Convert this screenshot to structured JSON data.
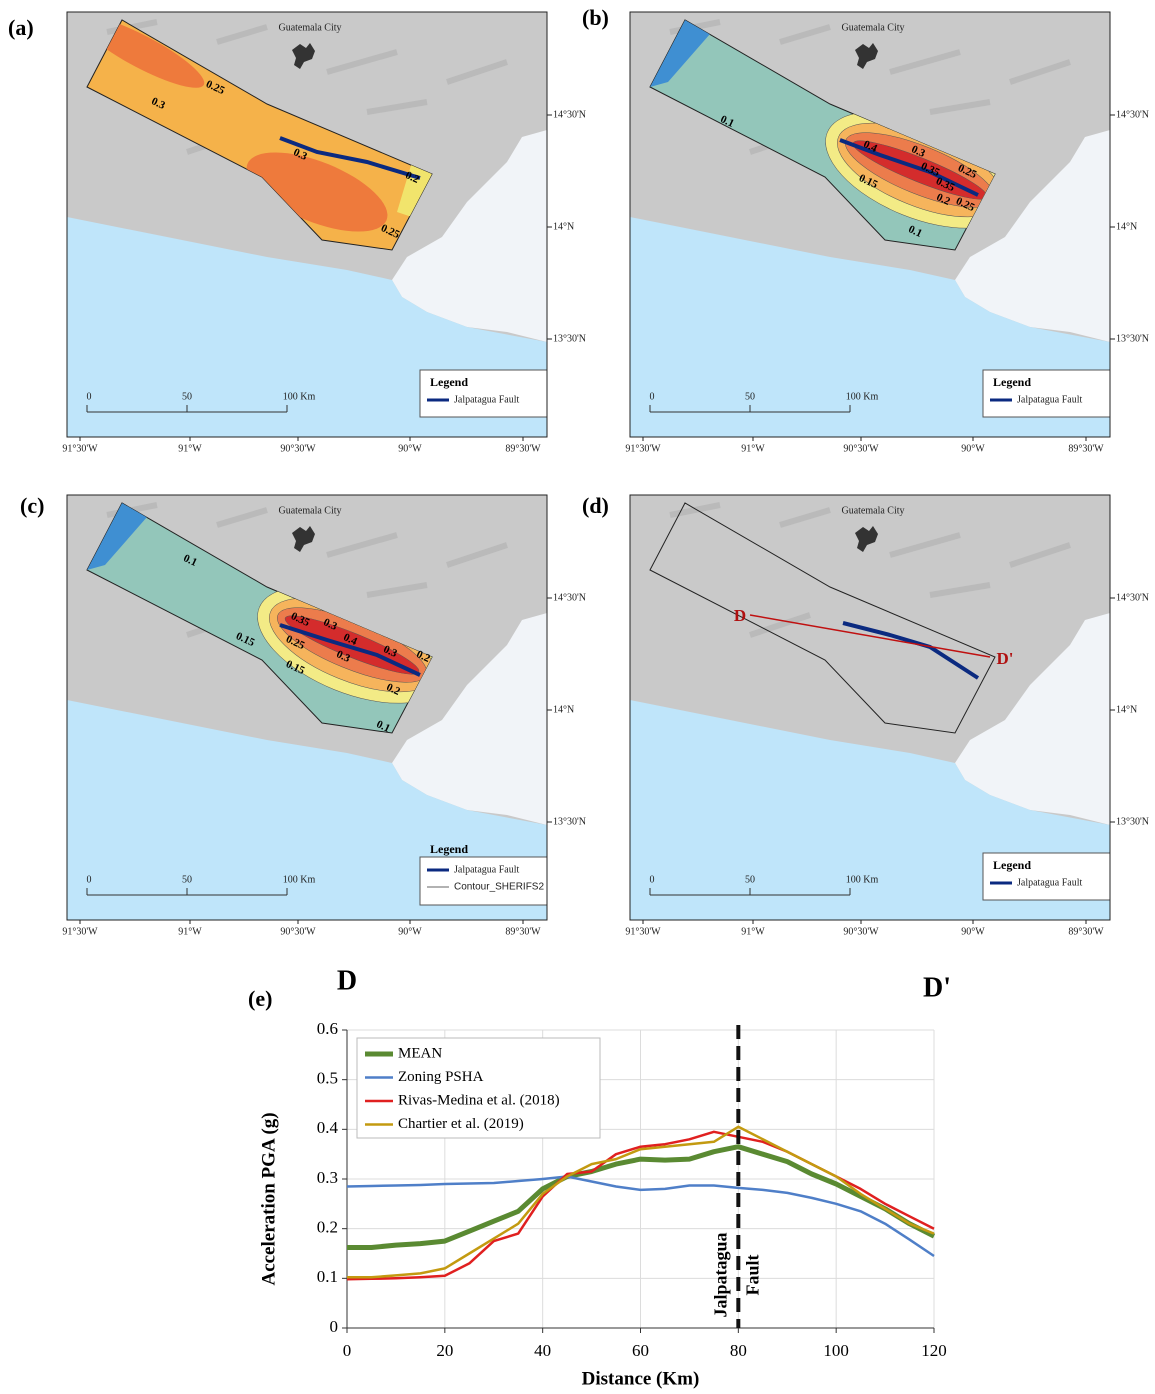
{
  "map_common": {
    "city": "Guatemala City",
    "lat_labels": [
      "14°30'N",
      "14°N",
      "13°30'N"
    ],
    "lon_labels": [
      "91°30'W",
      "91°W",
      "90°30'W",
      "90°W",
      "89°30'W"
    ],
    "scale_labels": [
      "0",
      "50",
      "100 Km"
    ],
    "legend_title": "Legend",
    "legend_fault": "Jalpatagua Fault"
  },
  "maps": [
    {
      "label": "(a)",
      "contours": [
        "0.25",
        "0.3",
        "0.3",
        "0.2",
        "0.25"
      ]
    },
    {
      "label": "(b)",
      "contours": [
        "0.1",
        "0.4",
        "0.3",
        "0.25",
        "0.35",
        "0.35",
        "0.15",
        "0.2",
        "0.25",
        "0.1"
      ]
    },
    {
      "label": "(c)",
      "contours": [
        "0.1",
        "0.35",
        "0.3",
        "0.4",
        "0.3",
        "0.2",
        "0.25",
        "0.3",
        "0.15",
        "0.15",
        "0.2",
        "0.1"
      ],
      "legend_extra": "Contour_SHERIFS2"
    },
    {
      "label": "(d)",
      "contours": [],
      "markers": [
        "D",
        "D'"
      ]
    }
  ],
  "chart_data": {
    "type": "line",
    "label": "(e)",
    "start_label": "D",
    "end_label": "D'",
    "x_label": "Distance (Km)",
    "y_label": "Acceleration PGA (g)",
    "x": [
      0,
      5,
      10,
      15,
      20,
      25,
      30,
      35,
      40,
      45,
      50,
      55,
      60,
      65,
      70,
      75,
      80,
      85,
      90,
      95,
      100,
      105,
      110,
      115,
      120
    ],
    "series": [
      {
        "name": "MEAN",
        "color": "#5a8a32",
        "values": [
          0.162,
          0.162,
          0.167,
          0.17,
          0.175,
          0.195,
          0.215,
          0.235,
          0.28,
          0.305,
          0.315,
          0.33,
          0.34,
          0.338,
          0.34,
          0.355,
          0.365,
          0.35,
          0.335,
          0.31,
          0.29,
          0.265,
          0.24,
          0.21,
          0.185
        ]
      },
      {
        "name": "Zoning PSHA",
        "color": "#4f7fc8",
        "values": [
          0.285,
          0.286,
          0.287,
          0.288,
          0.29,
          0.291,
          0.292,
          0.296,
          0.3,
          0.305,
          0.295,
          0.285,
          0.278,
          0.28,
          0.287,
          0.287,
          0.282,
          0.278,
          0.272,
          0.262,
          0.25,
          0.235,
          0.21,
          0.178,
          0.145
        ]
      },
      {
        "name": "Rivas-Medina et al. (2018)",
        "color": "#e02020",
        "values": [
          0.098,
          0.099,
          0.1,
          0.102,
          0.105,
          0.13,
          0.175,
          0.19,
          0.265,
          0.31,
          0.315,
          0.35,
          0.365,
          0.37,
          0.38,
          0.395,
          0.385,
          0.375,
          0.355,
          0.33,
          0.305,
          0.28,
          0.25,
          0.225,
          0.2
        ]
      },
      {
        "name": "Chartier et al. (2019)",
        "color": "#c39a10",
        "values": [
          0.102,
          0.102,
          0.106,
          0.11,
          0.12,
          0.15,
          0.18,
          0.21,
          0.27,
          0.305,
          0.33,
          0.34,
          0.36,
          0.365,
          0.37,
          0.375,
          0.405,
          0.38,
          0.355,
          0.33,
          0.305,
          0.27,
          0.24,
          0.21,
          0.19
        ]
      }
    ],
    "xlim": [
      0,
      120
    ],
    "xticks": [
      0,
      20,
      40,
      60,
      80,
      100,
      120
    ],
    "ylim": [
      0,
      0.6
    ],
    "yticks": [
      0,
      0.1,
      0.2,
      0.3,
      0.4,
      0.5,
      0.6
    ],
    "grid": true,
    "legend": "upper left",
    "reference_line": {
      "x": 80,
      "label": [
        "Jalpatagua",
        "Fault"
      ]
    }
  }
}
